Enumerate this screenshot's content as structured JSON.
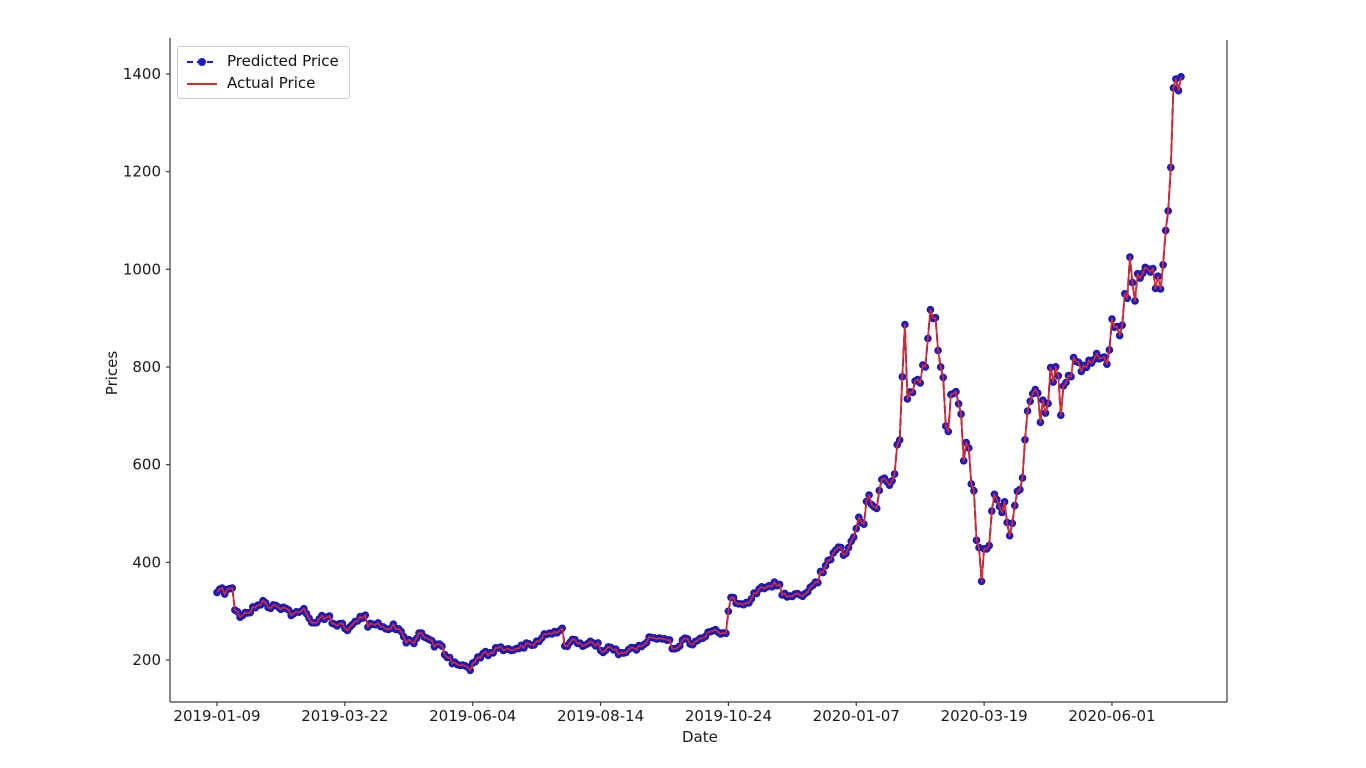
{
  "figure": {
    "background": "#ffffff",
    "spine_color": "#3c3c3c",
    "tick_label_color": "#1a1a1a"
  },
  "chart_data": {
    "type": "line",
    "title": "",
    "xlabel": "Date",
    "ylabel": "Prices",
    "grid": false,
    "legend_position": "upper left",
    "x_is_trading_day_index": true,
    "x_tick_positions": [
      0,
      50,
      100,
      150,
      200,
      250,
      300,
      350
    ],
    "x_tick_labels": [
      "2019-01-09",
      "2019-03-22",
      "2019-06-04",
      "2019-08-14",
      "2019-10-24",
      "2020-01-07",
      "2020-03-19",
      "2020-06-01"
    ],
    "y_ticks": [
      200,
      400,
      600,
      800,
      1000,
      1200,
      1400
    ],
    "y_tick_labels": [
      "200",
      "400",
      "600",
      "800",
      "1000",
      "1200",
      "1400"
    ],
    "ylim": [
      114,
      1475
    ],
    "series": [
      {
        "name": "Predicted Price",
        "color": "#1c1ccc",
        "marker_edge": "#14149e",
        "style": "dashed",
        "marker": "circle",
        "values": [
          338.53,
          344.97,
          347.26,
          334.96,
          344.43,
          346.05,
          347.31,
          302.26,
          298.92,
          287.59,
          291.4,
          297.04,
          296.38,
          297.04,
          308.77,
          307.02,
          312.21,
          312.89,
          321.35,
          317.22,
          307.51,
          305.8,
          312.84,
          311.87,
          308.17,
          303.88,
          307.88,
          305.64,
          302.56,
          291.23,
          294.71,
          298.77,
          297.86,
          300.34,
          305.1,
          294.79,
          285.36,
          276.54,
          276.24,
          276.59,
          284.14,
          290.92,
          283.36,
          288.0,
          289.96,
          275.43,
          273.26,
          269.87,
          274.34,
          274.86,
          264.53,
          260.42,
          267.77,
          272.89,
          278.62,
          279.86,
          289.18,
          285.88,
          291.81,
          267.78,
          274.96,
          273.2,
          272.31,
          276.06,
          268.42,
          267.7,
          263.9,
          262.75,
          264.54,
          273.26,
          262.75,
          263.9,
          258.66,
          247.63,
          235.14,
          241.47,
          238.69,
          234.01,
          244.1,
          255.03,
          255.34,
          247.06,
          244.84,
          241.98,
          239.52,
          227.01,
          232.31,
          232.54,
          228.29,
          211.03,
          205.36,
          205.08,
          192.73,
          195.49,
          190.63,
          188.7,
          189.86,
          188.22,
          185.16,
          178.97,
          193.6,
          196.59,
          205.95,
          204.41,
          213.31,
          217.1,
          209.26,
          214.92,
          214.66,
          225.03,
          224.74,
          226.43,
          219.62,
          221.86,
          222.84,
          219.76,
          220.36,
          223.46,
          223.26,
          230.05,
          224.55,
          234.9,
          233.1,
          230.34,
          230.75,
          238.6,
          238.3,
          245.08,
          253.5,
          252.38,
          254.86,
          253.54,
          258.18,
          255.68,
          260.17,
          264.88,
          228.82,
          228.04,
          235.77,
          242.26,
          241.61,
          233.85,
          234.34,
          228.32,
          230.75,
          233.42,
          238.3,
          235.01,
          229.01,
          235.0,
          219.62,
          215.64,
          219.94,
          226.83,
          225.86,
          220.83,
          222.15,
          211.4,
          215.0,
          214.08,
          215.59,
          221.71,
          225.61,
          225.01,
          220.68,
          229.58,
          227.45,
          231.79,
          235.54,
          247.1,
          245.87,
          245.32,
          242.81,
          244.79,
          243.13,
          243.49,
          240.62,
          241.23,
          223.21,
          222.96,
          224.61,
          228.7,
          240.87,
          244.69,
          243.13,
          233.03,
          231.43,
          237.72,
          240.05,
          244.53,
          244.74,
          247.89,
          256.96,
          257.89,
          259.94,
          262.0,
          256.95,
          253.5,
          255.58,
          254.68,
          299.68,
          328.13,
          327.71,
          316.22,
          315.01,
          314.92,
          313.31,
          317.47,
          317.0,
          325.06,
          337.14,
          336.0,
          345.09,
          349.93,
          346.11,
          349.35,
          352.17,
          349.99,
          359.52,
          352.22,
          354.83,
          333.04,
          336.34,
          328.92,
          331.29,
          329.94,
          334.87,
          336.2,
          333.03,
          330.37,
          335.89,
          339.53,
          348.84,
          352.7,
          359.68,
          358.39,
          381.5,
          378.99,
          393.15,
          404.04,
          405.59,
          419.22,
          425.25,
          430.94,
          430.38,
          414.7,
          418.33,
          430.26,
          443.01,
          451.54,
          469.06,
          492.14,
          481.34,
          478.15,
          524.86,
          537.92,
          518.5,
          513.49,
          510.5,
          547.2,
          569.56,
          572.2,
          564.82,
          558.02,
          566.9,
          580.99,
          640.81,
          650.57,
          780.0,
          887.06,
          734.7,
          748.96,
          748.07,
          771.28,
          774.38,
          767.29,
          804.0,
          800.03,
          858.4,
          917.42,
          899.41,
          901.0,
          833.79,
          799.91,
          778.8,
          679.0,
          667.99,
          743.62,
          745.51,
          749.5,
          724.54,
          703.48,
          608.0,
          645.33,
          634.23,
          560.55,
          546.62,
          445.07,
          430.2,
          361.22,
          427.64,
          427.53,
          434.29,
          505.0,
          539.25,
          528.16,
          514.36,
          502.13,
          524.0,
          481.56,
          454.47,
          480.01,
          516.24,
          545.45,
          548.84,
          573.0,
          650.95,
          709.89,
          729.83,
          745.21,
          753.89,
          746.36,
          686.72,
          732.11,
          705.63,
          725.15,
          798.75,
          769.12,
          800.51,
          781.88,
          701.32,
          761.19,
          768.21,
          782.58,
          780.04,
          819.42,
          811.29,
          809.41,
          790.96,
          803.33,
          799.17,
          813.63,
          808.01,
          815.56,
          827.6,
          816.88,
          818.87,
          820.23,
          805.81,
          835.0,
          898.1,
          881.56,
          882.96,
          864.38,
          885.66,
          949.92,
          940.67,
          1025.05,
          972.84,
          935.28,
          990.9,
          982.13,
          991.79,
          1003.96,
          1000.9,
          994.3,
          1001.78,
          960.85,
          985.98,
          959.74,
          1009.35,
          1079.81,
          1119.63,
          1208.66,
          1371.58,
          1389.86,
          1365.88,
          1394.28
        ]
      },
      {
        "name": "Actual Price",
        "color": "#d62b2b",
        "style": "solid",
        "marker": "none",
        "values": [
          338.53,
          344.97,
          347.26,
          334.96,
          344.43,
          346.05,
          347.31,
          302.26,
          298.92,
          287.59,
          291.4,
          297.04,
          296.38,
          297.04,
          308.77,
          307.02,
          312.21,
          312.89,
          321.35,
          317.22,
          307.51,
          305.8,
          312.84,
          311.87,
          308.17,
          303.88,
          307.88,
          305.64,
          302.56,
          291.23,
          294.71,
          298.77,
          297.86,
          300.34,
          305.1,
          294.79,
          285.36,
          276.54,
          276.24,
          276.59,
          284.14,
          290.92,
          283.36,
          288.0,
          289.96,
          275.43,
          273.26,
          269.87,
          274.34,
          274.86,
          264.53,
          260.42,
          267.77,
          272.89,
          278.62,
          279.86,
          289.18,
          285.88,
          291.81,
          267.78,
          274.96,
          273.2,
          272.31,
          276.06,
          268.42,
          267.7,
          263.9,
          262.75,
          264.54,
          273.26,
          262.75,
          263.9,
          258.66,
          247.63,
          235.14,
          241.47,
          238.69,
          234.01,
          244.1,
          255.03,
          255.34,
          247.06,
          244.84,
          241.98,
          239.52,
          227.01,
          232.31,
          232.54,
          228.29,
          211.03,
          205.36,
          205.08,
          192.73,
          195.49,
          190.63,
          188.7,
          189.86,
          188.22,
          185.16,
          178.97,
          193.6,
          196.59,
          205.95,
          204.41,
          213.31,
          217.1,
          209.26,
          214.92,
          214.66,
          225.03,
          224.74,
          226.43,
          219.62,
          221.86,
          222.84,
          219.76,
          220.36,
          223.46,
          223.26,
          230.05,
          224.55,
          234.9,
          233.1,
          230.34,
          230.75,
          238.6,
          238.3,
          245.08,
          253.5,
          252.38,
          254.86,
          253.54,
          258.18,
          255.68,
          260.17,
          264.88,
          228.82,
          228.04,
          235.77,
          242.26,
          241.61,
          233.85,
          234.34,
          228.32,
          230.75,
          233.42,
          238.3,
          235.01,
          229.01,
          235.0,
          219.62,
          215.64,
          219.94,
          226.83,
          225.86,
          220.83,
          222.15,
          211.4,
          215.0,
          214.08,
          215.59,
          221.71,
          225.61,
          225.01,
          220.68,
          229.58,
          227.45,
          231.79,
          235.54,
          247.1,
          245.87,
          245.32,
          242.81,
          244.79,
          243.13,
          243.49,
          240.62,
          241.23,
          223.21,
          222.96,
          224.61,
          228.7,
          240.87,
          244.69,
          243.13,
          233.03,
          231.43,
          237.72,
          240.05,
          244.53,
          244.74,
          247.89,
          256.96,
          257.89,
          259.94,
          262.0,
          256.95,
          253.5,
          255.58,
          254.68,
          299.68,
          328.13,
          327.71,
          316.22,
          315.01,
          314.92,
          313.31,
          317.47,
          317.0,
          325.06,
          337.14,
          336.0,
          345.09,
          349.93,
          346.11,
          349.35,
          352.17,
          349.99,
          359.52,
          352.22,
          354.83,
          333.04,
          336.34,
          328.92,
          331.29,
          329.94,
          334.87,
          336.2,
          333.03,
          330.37,
          335.89,
          339.53,
          348.84,
          352.7,
          359.68,
          358.39,
          381.5,
          378.99,
          393.15,
          404.04,
          405.59,
          419.22,
          425.25,
          430.94,
          430.38,
          414.7,
          418.33,
          430.26,
          443.01,
          451.54,
          469.06,
          492.14,
          481.34,
          478.15,
          524.86,
          537.92,
          518.5,
          513.49,
          510.5,
          547.2,
          569.56,
          572.2,
          564.82,
          558.02,
          566.9,
          580.99,
          640.81,
          650.57,
          780.0,
          887.06,
          734.7,
          748.96,
          748.07,
          771.28,
          774.38,
          767.29,
          804.0,
          800.03,
          858.4,
          917.42,
          899.41,
          901.0,
          833.79,
          799.91,
          778.8,
          679.0,
          667.99,
          743.62,
          745.51,
          749.5,
          724.54,
          703.48,
          608.0,
          645.33,
          634.23,
          560.55,
          546.62,
          445.07,
          430.2,
          361.22,
          427.64,
          427.53,
          434.29,
          505.0,
          539.25,
          528.16,
          514.36,
          502.13,
          524.0,
          481.56,
          454.47,
          480.01,
          516.24,
          545.45,
          548.84,
          573.0,
          650.95,
          709.89,
          729.83,
          745.21,
          753.89,
          746.36,
          686.72,
          732.11,
          705.63,
          725.15,
          798.75,
          769.12,
          800.51,
          781.88,
          701.32,
          761.19,
          768.21,
          782.58,
          780.04,
          819.42,
          811.29,
          809.41,
          790.96,
          803.33,
          799.17,
          813.63,
          808.01,
          815.56,
          827.6,
          816.88,
          818.87,
          820.23,
          805.81,
          835.0,
          898.1,
          881.56,
          882.96,
          864.38,
          885.66,
          949.92,
          940.67,
          1025.05,
          972.84,
          935.28,
          990.9,
          982.13,
          991.79,
          1003.96,
          1000.9,
          994.3,
          1001.78,
          960.85,
          985.98,
          959.74,
          1009.35,
          1079.81,
          1119.63,
          1208.66,
          1371.58,
          1389.86,
          1365.88,
          1394.28
        ]
      }
    ]
  }
}
